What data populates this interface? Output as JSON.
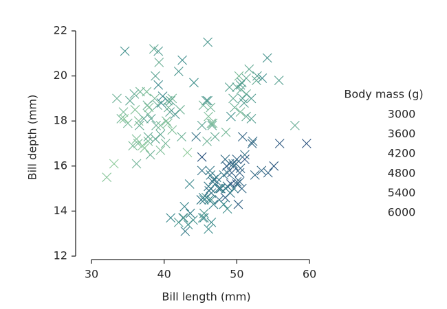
{
  "chart_data": {
    "type": "scatter",
    "xlabel": "Bill length (mm)",
    "ylabel": "Bill depth (mm)",
    "xlim": [
      30,
      60
    ],
    "xticks": [
      30,
      40,
      50,
      60
    ],
    "ylim": [
      12,
      22
    ],
    "yticks": [
      12,
      14,
      16,
      18,
      20,
      22
    ],
    "legend_title": "Body mass (g)",
    "legend_labels": [
      3000,
      3600,
      4200,
      4800,
      5400,
      6000
    ],
    "palette": [
      "#8fcb9b",
      "#3a8a8c",
      "#2c4a7e"
    ],
    "marker": "x",
    "x": [
      39.1,
      39.5,
      40.3,
      36.7,
      39.3,
      38.9,
      39.2,
      34.1,
      42,
      37.8,
      37.8,
      41.1,
      38.6,
      34.6,
      36.6,
      38.7,
      42.5,
      34.4,
      46,
      37.8,
      37.7,
      35.9,
      38.2,
      38.8,
      35.3,
      40.6,
      40.5,
      37.9,
      40.5,
      39.5,
      37.2,
      39.5,
      40.9,
      36.4,
      39.2,
      38.8,
      42.2,
      37.6,
      39.8,
      36.5,
      40.8,
      36,
      44.1,
      37,
      39.6,
      41.1,
      36.2,
      32.1,
      33.5,
      35,
      34.5,
      40.2,
      35.7,
      41.5,
      38.1,
      36.2,
      33.1,
      37.3,
      45.8,
      46.5,
      50,
      51.3,
      45.4,
      52.7,
      45.2,
      46.1,
      51.3,
      46,
      51.3,
      46.6,
      51.7,
      47,
      52,
      45.9,
      50.5,
      50.3,
      58,
      46.4,
      49.2,
      42.4,
      48.5,
      43.2,
      50.6,
      46.7,
      52,
      50.5,
      49.5,
      50.8,
      53.5,
      52.8,
      54.2,
      51,
      49,
      55.8,
      50.7,
      49.7,
      46.1,
      50,
      48.7,
      50,
      47.6,
      46.5,
      45.4,
      46.7,
      43.3,
      46.8,
      40.9,
      49,
      45.5,
      48.4,
      45.8,
      49.3,
      42,
      49.2,
      46.2,
      48.7,
      50.2,
      45.1,
      46.5,
      46.3,
      42.9,
      46.1,
      47.8,
      48.2,
      50,
      47.3,
      42.8,
      45.1,
      59.6,
      49.1,
      48.4,
      42.6,
      44.4,
      44,
      48.7,
      42.7,
      49.6,
      45.3,
      49.6,
      50.5,
      43.6,
      45.5,
      50.4,
      46.2,
      51.1,
      52.5,
      55.9,
      47.2,
      55.1,
      53.4,
      54.3,
      50.8,
      52.2,
      45.5,
      49.9,
      52.1,
      48.5,
      43.5,
      50.7,
      47.7,
      46.4,
      48.2,
      46.5,
      46.4,
      48.6,
      47.5,
      51.1,
      45.2,
      45.2,
      49.5,
      46.8,
      50.4
    ],
    "values": [
      18.7,
      17.4,
      18,
      19.3,
      20.6,
      17.8,
      19.6,
      18.1,
      20.2,
      17.1,
      17.3,
      17.6,
      21.2,
      21.1,
      17.8,
      19,
      20.7,
      18.4,
      21.5,
      18.3,
      18.7,
      19.2,
      18.1,
      17.2,
      18.9,
      18.6,
      17.9,
      18.6,
      18.9,
      16.7,
      18.1,
      17.8,
      18.9,
      17,
      21.1,
      20,
      18.5,
      19.3,
      19.1,
      18,
      18.4,
      18.5,
      19.7,
      16.9,
      18.8,
      19,
      17.2,
      15.5,
      19,
      17.9,
      18.1,
      17,
      16.9,
      18.3,
      16.5,
      16.1,
      16.1,
      16.8,
      18.9,
      17.9,
      19.5,
      19.2,
      18.7,
      19.8,
      17.8,
      18.2,
      18.2,
      18.9,
      19.9,
      17.8,
      20.3,
      17.3,
      18.1,
      17.1,
      19.6,
      20,
      17.8,
      18.6,
      18.2,
      17.3,
      17.5,
      16.6,
      19.4,
      17.9,
      19,
      18.4,
      19,
      19,
      19.9,
      20,
      20.8,
      18.8,
      19.5,
      19.8,
      19.7,
      18.6,
      13.2,
      16.3,
      14.1,
      15.2,
      14.5,
      13.5,
      14.6,
      15.3,
      13.4,
      15.4,
      13.7,
      16.1,
      13.7,
      14.6,
      14.6,
      15.7,
      13.5,
      15.2,
      14.5,
      15.1,
      14.3,
      14.5,
      14.5,
      15.8,
      13.1,
      15.1,
      15,
      14.3,
      15.3,
      15.3,
      14.2,
      14.5,
      17,
      14.8,
      16.3,
      13.7,
      17.3,
      13.6,
      15.7,
      13.7,
      16,
      13.7,
      15,
      15.9,
      13.9,
      13.9,
      15.7,
      14.9,
      16.3,
      15.6,
      17,
      15.5,
      16,
      15.8,
      15.7,
      17.3,
      17.1,
      14.5,
      16.1,
      17,
      15,
      15.2,
      15,
      15,
      15,
      15.6,
      14.8,
      15.6,
      16,
      15,
      16.5,
      16.4,
      15.8,
      16.1,
      14.3,
      15.3
    ],
    "hue": [
      3750,
      3800,
      3250,
      3450,
      3650,
      3625,
      4675,
      3475,
      4250,
      3300,
      3700,
      3200,
      3800,
      4400,
      3700,
      3450,
      4500,
      3325,
      4200,
      3400,
      3600,
      3800,
      3950,
      3800,
      3800,
      3550,
      3200,
      3150,
      3950,
      3250,
      3900,
      3300,
      3900,
      3325,
      4150,
      3950,
      3550,
      3300,
      4650,
      3150,
      3900,
      3100,
      4400,
      3000,
      4600,
      3425,
      3150,
      3050,
      3600,
      3450,
      2900,
      3450,
      3350,
      4300,
      3600,
      3550,
      2900,
      3000,
      4150,
      3500,
      3900,
      3650,
      3525,
      3725,
      3950,
      3250,
      3750,
      4150,
      3700,
      3800,
      3775,
      3700,
      4050,
      3575,
      4050,
      3300,
      3700,
      3450,
      4400,
      3600,
      3400,
      2900,
      3800,
      3300,
      4150,
      3400,
      3800,
      4100,
      4500,
      4050,
      4300,
      4100,
      3950,
      4000,
      4050,
      3600,
      4500,
      5700,
      4450,
      5700,
      5400,
      4550,
      4800,
      5200,
      4400,
      5150,
      4650,
      5550,
      4650,
      5850,
      4200,
      5850,
      4150,
      6300,
      4800,
      5350,
      5700,
      5000,
      4400,
      5050,
      5000,
      5100,
      5650,
      4600,
      5550,
      5250,
      4700,
      5050,
      6050,
      5150,
      5400,
      4950,
      5250,
      4350,
      5350,
      3950,
      5700,
      4300,
      4750,
      5550,
      4900,
      4200,
      5750,
      5400,
      6000,
      5450,
      5850,
      4975,
      5850,
      5500,
      5650,
      5600,
      5400,
      4750,
      5400,
      5550,
      4850,
      4650,
      5550,
      4725,
      4975,
      5100,
      5200,
      5000,
      5800,
      5100,
      5250,
      5950,
      5250,
      5350,
      4850,
      5550
    ]
  }
}
